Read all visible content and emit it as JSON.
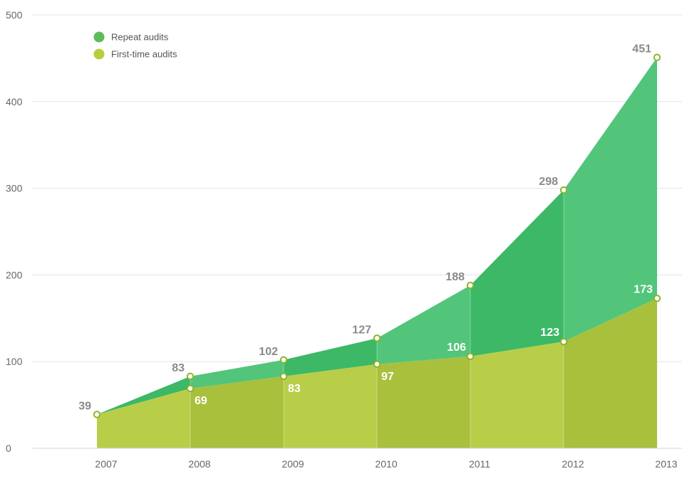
{
  "chart_data": {
    "type": "area",
    "categories": [
      "2007",
      "2008",
      "2009",
      "2010",
      "2011",
      "2012",
      "2013"
    ],
    "series": [
      {
        "name": "Repeat audits",
        "values": [
          39,
          83,
          102,
          127,
          188,
          298,
          451
        ],
        "color": "#45bd6e",
        "labels": [
          "39",
          "83",
          "102",
          "127",
          "188",
          "298",
          "451"
        ]
      },
      {
        "name": "First-time audits",
        "values": [
          39,
          69,
          83,
          97,
          106,
          123,
          173
        ],
        "color": "#b7cd47",
        "labels": [
          "",
          "69",
          "83",
          "97",
          "106",
          "123",
          "173"
        ]
      }
    ],
    "ylim": [
      0,
      500
    ],
    "yticks": [
      "0",
      "100",
      "200",
      "300",
      "400",
      "500"
    ],
    "title": "",
    "xlabel": "",
    "ylabel": "",
    "grid": true,
    "legend_position": "top-left"
  }
}
